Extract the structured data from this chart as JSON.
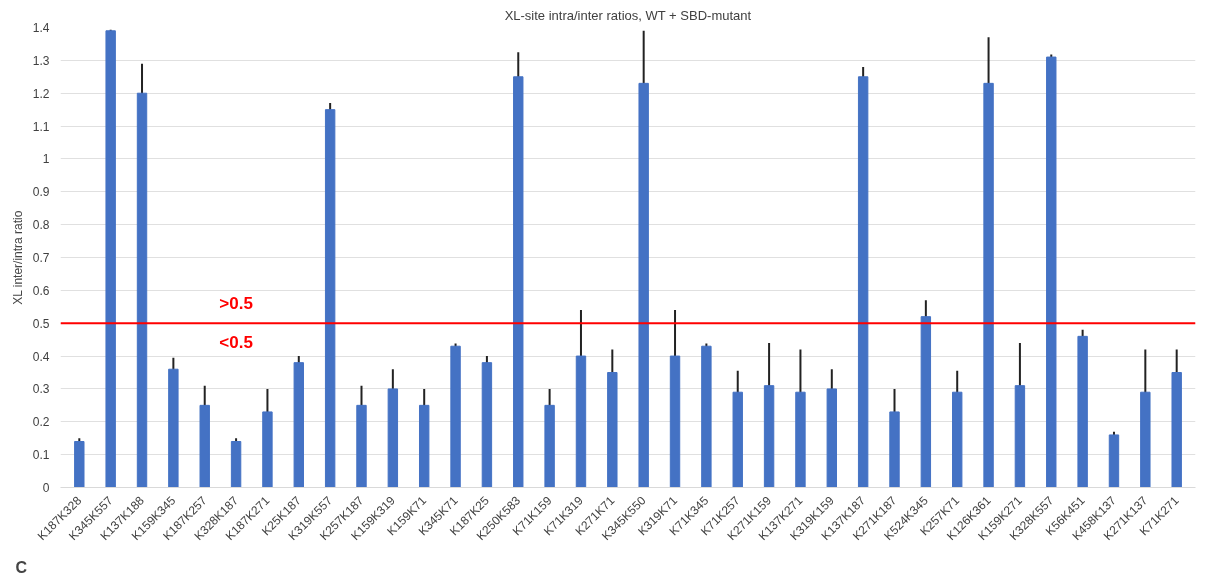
{
  "chart_data": {
    "type": "bar",
    "title": "XL-site intra/inter ratios, WT + SBD-mutant",
    "ylabel": "XL inter/intra ratio",
    "categories": [
      "K187K328",
      "K345K557",
      "K137K188",
      "K159K345",
      "K187K257",
      "K328K187",
      "K187K271",
      "K25K187",
      "K319K557",
      "K257K187",
      "K159K319",
      "K159K71",
      "K345K71",
      "K187K25",
      "K250K583",
      "K71K159",
      "K71K319",
      "K271K71",
      "K345K550",
      "K319K71",
      "K71K345",
      "K71K257",
      "K271K159",
      "K137K271",
      "K319K159",
      "K137K187",
      "K271K187",
      "K524K345",
      "K257K71",
      "K126K361",
      "K159K271",
      "K328K557",
      "K56K451",
      "K458K137",
      "K271K137",
      "K71K271"
    ],
    "values": [
      0.14,
      1.39,
      1.2,
      0.36,
      0.25,
      0.14,
      0.23,
      0.38,
      1.15,
      0.25,
      0.3,
      0.25,
      0.43,
      0.38,
      1.25,
      0.25,
      0.4,
      0.35,
      1.23,
      0.4,
      0.43,
      0.29,
      0.31,
      0.29,
      0.3,
      1.25,
      0.23,
      0.52,
      0.29,
      1.23,
      0.31,
      1.31,
      0.46,
      0.16,
      0.29,
      0.35
    ],
    "errors": [
      0.01,
      0.003,
      0.09,
      0.035,
      0.06,
      0.01,
      0.07,
      0.02,
      0.02,
      0.06,
      0.06,
      0.05,
      0.008,
      0.02,
      0.075,
      0.05,
      0.14,
      0.07,
      0.16,
      0.14,
      0.008,
      0.065,
      0.13,
      0.13,
      0.06,
      0.03,
      0.07,
      0.05,
      0.065,
      0.14,
      0.13,
      0.008,
      0.02,
      0.01,
      0.13,
      0.07
    ],
    "color": "#4472c4",
    "ylim": [
      0,
      1.4
    ],
    "yticks": [
      0,
      {
        "value": 0.1,
        "label": "0.1"
      },
      {
        "value": 0.2,
        "label": "0.2"
      },
      {
        "value": 0.3,
        "label": "0.3"
      },
      {
        "value": 0.4,
        "label": "0.4"
      },
      {
        "value": 0.5,
        "label": "0.5"
      },
      {
        "value": 0.6,
        "label": "0.6"
      },
      {
        "value": 0.7,
        "label": "0.7"
      },
      {
        "value": 0.8,
        "label": "0.8"
      },
      {
        "value": 0.9,
        "label": "0.9"
      },
      1,
      {
        "value": 1.1,
        "label": "1.1"
      },
      {
        "value": 1.2,
        "label": "1.2"
      },
      {
        "value": 1.3,
        "label": "1.3"
      },
      {
        "value": 1.4,
        "label": "1.4"
      }
    ],
    "grid": "y",
    "ref_lines": [
      {
        "axis": "y",
        "value": 0.5,
        "color": "#ff0000"
      }
    ],
    "annotations": [
      ">0.5",
      "<0.5",
      "C"
    ]
  }
}
